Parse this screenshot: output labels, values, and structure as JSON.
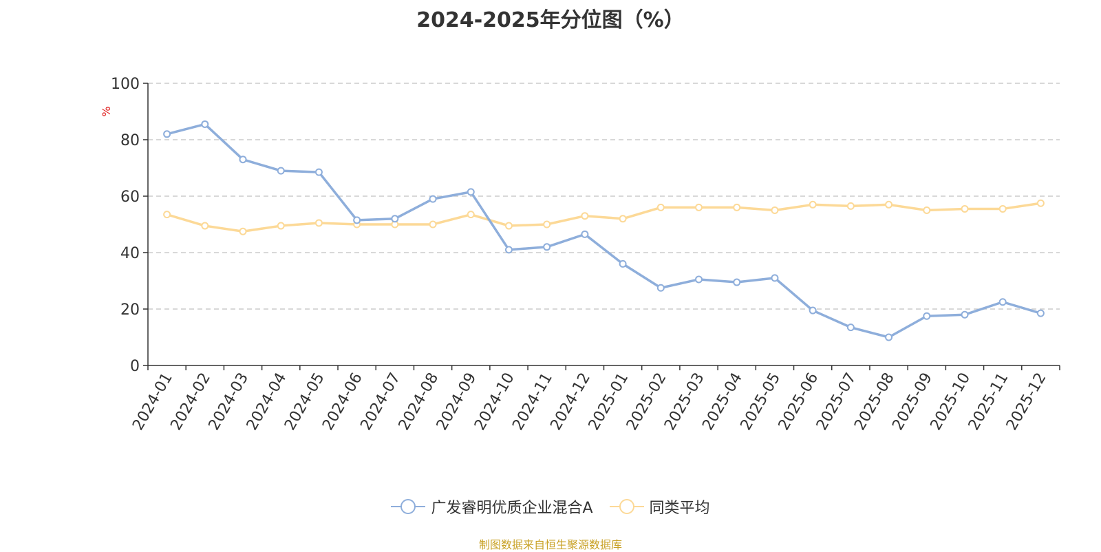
{
  "chart_data": {
    "type": "line",
    "title": "2024-2025年分位图（%）",
    "ylabel": "%",
    "ylim": [
      0,
      100
    ],
    "yticks": [
      "0",
      "20",
      "40",
      "60",
      "80",
      "100"
    ],
    "grid": true,
    "legend_position": "bottom-center",
    "categories": [
      "2024-01",
      "2024-02",
      "2024-03",
      "2024-04",
      "2024-05",
      "2024-06",
      "2024-07",
      "2024-08",
      "2024-09",
      "2024-10",
      "2024-11",
      "2024-12",
      "2025-01",
      "2025-02",
      "2025-03",
      "2025-04",
      "2025-05",
      "2025-06",
      "2025-07",
      "2025-08",
      "2025-09",
      "2025-10",
      "2025-11",
      "2025-12"
    ],
    "series": [
      {
        "name": "广发睿明优质企业混合A",
        "color": "#8eaedb",
        "values": [
          82,
          85.5,
          73,
          69,
          68.5,
          51.5,
          52,
          59,
          61.5,
          41,
          42,
          46.5,
          36,
          27.5,
          30.5,
          29.5,
          31,
          19.5,
          13.5,
          10,
          17.5,
          18,
          22.5,
          18.5
        ]
      },
      {
        "name": "同类平均",
        "color": "#fcd997",
        "values": [
          53.5,
          49.5,
          47.5,
          49.5,
          50.5,
          50,
          50,
          50,
          53.5,
          49.5,
          50,
          53,
          52,
          56,
          56,
          56,
          55,
          57,
          56.5,
          57,
          55,
          55.5,
          55.5,
          57.5
        ]
      }
    ]
  },
  "source_text": "制图数据来自恒生聚源数据库",
  "colors": {
    "axis": "#333333",
    "grid": "#cccccc",
    "ylabel": "#e02020",
    "source": "#c9a227"
  }
}
